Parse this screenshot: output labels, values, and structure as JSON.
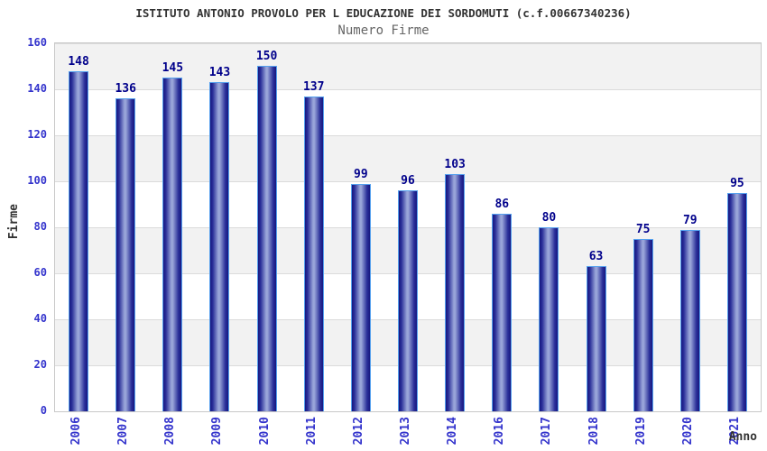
{
  "chart_data": {
    "type": "bar",
    "title": "ISTITUTO ANTONIO PROVOLO PER L EDUCAZIONE DEI SORDOMUTI (c.f.00667340236)",
    "subtitle": "Numero Firme",
    "xlabel": "Anno",
    "ylabel": "Firme",
    "categories": [
      "2006",
      "2007",
      "2008",
      "2009",
      "2010",
      "2011",
      "2012",
      "2013",
      "2014",
      "2016",
      "2017",
      "2018",
      "2019",
      "2020",
      "2021"
    ],
    "values": [
      148,
      136,
      145,
      143,
      150,
      137,
      99,
      96,
      103,
      86,
      80,
      63,
      75,
      79,
      95
    ],
    "ylim": [
      0,
      160
    ],
    "ytick_step": 20,
    "grid": true,
    "legend_position": "none",
    "band_pattern": "alternating horizontal bands, gray topmost",
    "colors": {
      "bar_dark": "#17177F",
      "bar_mid": "#2A2F99",
      "bar_light": "#99A5D9",
      "bar_border": "#55A0EE",
      "axis_tick_label": "#3333CC",
      "value_label": "#00008B",
      "title_color": "#333333",
      "subtitle_color": "#666666",
      "band_gray": "#F2F2F2",
      "band_white": "#FFFFFF",
      "grid_line": "#DBDBDB",
      "plot_border": "#C8C8C8"
    }
  }
}
